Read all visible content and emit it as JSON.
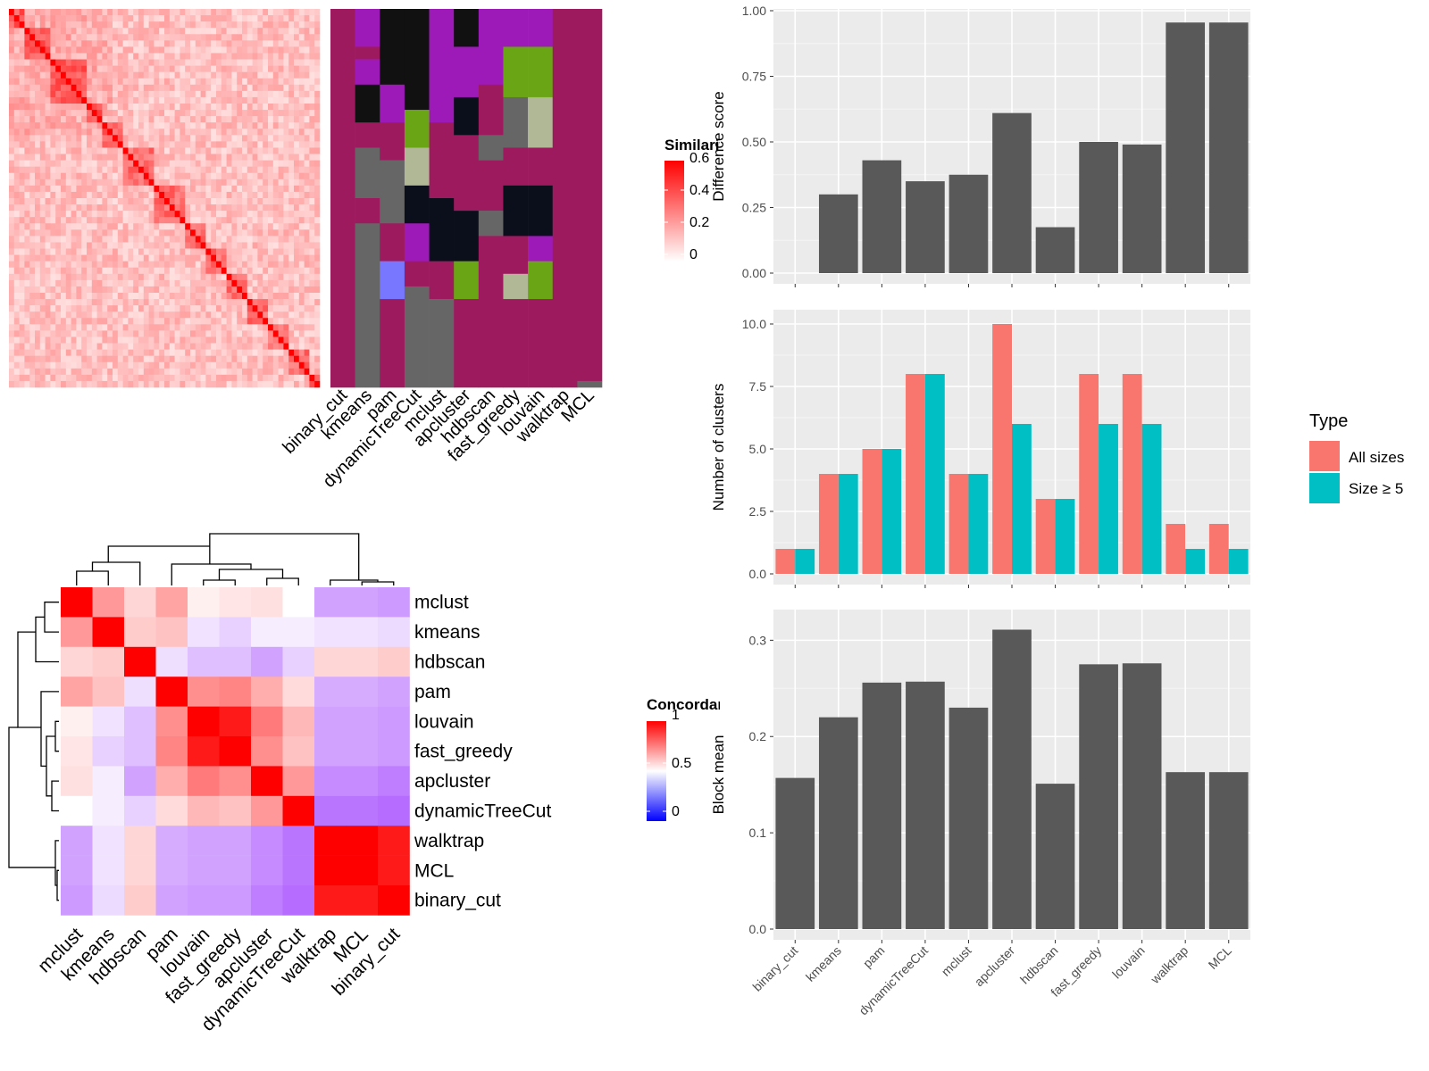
{
  "methods": [
    "binary_cut",
    "kmeans",
    "pam",
    "dynamicTreeCut",
    "mclust",
    "apcluster",
    "hdbscan",
    "fast_greedy",
    "louvain",
    "walktrap",
    "MCL"
  ],
  "similarity_legend": {
    "title": "Similarity",
    "ticks": [
      "0.6",
      "0.4",
      "0.2",
      "0"
    ]
  },
  "concordance_legend": {
    "title": "Concordance",
    "ticks": [
      "1",
      "0.5",
      "0"
    ]
  },
  "type_legend": {
    "title": "Type",
    "entries": [
      "All sizes",
      "Size ≥ 5"
    ]
  },
  "colors": {
    "panel_bg": "#ebebeb",
    "bar_grey": "#595959",
    "all_sizes": "#f8766d",
    "size5": "#00bfc4",
    "heat_red": "#ff0000"
  },
  "concordance_heatmap": {
    "rows": [
      "mclust",
      "kmeans",
      "hdbscan",
      "pam",
      "louvain",
      "fast_greedy",
      "apcluster",
      "dynamicTreeCut",
      "walktrap",
      "MCL",
      "binary_cut"
    ],
    "cols": [
      "mclust",
      "kmeans",
      "hdbscan",
      "pam",
      "louvain",
      "fast_greedy",
      "apcluster",
      "dynamicTreeCut",
      "walktrap",
      "MCL",
      "binary_cut"
    ],
    "values": [
      [
        1.0,
        0.7,
        0.58,
        0.68,
        0.53,
        0.55,
        0.56,
        0.5,
        0.3,
        0.3,
        0.28
      ],
      [
        0.7,
        1.0,
        0.6,
        0.62,
        0.44,
        0.4,
        0.46,
        0.46,
        0.44,
        0.44,
        0.42
      ],
      [
        0.58,
        0.6,
        1.0,
        0.43,
        0.36,
        0.36,
        0.3,
        0.4,
        0.58,
        0.58,
        0.6
      ],
      [
        0.68,
        0.62,
        0.43,
        1.0,
        0.72,
        0.74,
        0.66,
        0.57,
        0.32,
        0.32,
        0.3
      ],
      [
        0.53,
        0.44,
        0.36,
        0.72,
        1.0,
        0.95,
        0.76,
        0.64,
        0.3,
        0.3,
        0.28
      ],
      [
        0.55,
        0.4,
        0.36,
        0.74,
        0.95,
        1.0,
        0.72,
        0.62,
        0.3,
        0.3,
        0.28
      ],
      [
        0.56,
        0.46,
        0.3,
        0.66,
        0.76,
        0.72,
        1.0,
        0.7,
        0.25,
        0.25,
        0.22
      ],
      [
        0.5,
        0.46,
        0.4,
        0.57,
        0.64,
        0.62,
        0.7,
        1.0,
        0.2,
        0.2,
        0.18
      ],
      [
        0.3,
        0.44,
        0.58,
        0.32,
        0.3,
        0.3,
        0.25,
        0.2,
        1.0,
        1.0,
        0.95
      ],
      [
        0.3,
        0.44,
        0.58,
        0.32,
        0.3,
        0.3,
        0.25,
        0.2,
        1.0,
        1.0,
        0.95
      ],
      [
        0.28,
        0.42,
        0.6,
        0.3,
        0.28,
        0.28,
        0.22,
        0.18,
        0.95,
        0.95,
        1.0
      ]
    ]
  },
  "chart_data": [
    {
      "type": "bar",
      "categories": [
        "binary_cut",
        "kmeans",
        "pam",
        "dynamicTreeCut",
        "mclust",
        "apcluster",
        "hdbscan",
        "fast_greedy",
        "louvain",
        "walktrap",
        "MCL"
      ],
      "values": [
        0.0,
        0.3,
        0.43,
        0.35,
        0.375,
        0.61,
        0.175,
        0.5,
        0.49,
        0.955,
        0.955
      ],
      "ylabel": "Difference score",
      "ylim": [
        0,
        1.0
      ],
      "yticks": [
        "0.00",
        "0.25",
        "0.50",
        "0.75",
        "1.00"
      ],
      "ytick_values": [
        0,
        0.25,
        0.5,
        0.75,
        1.0
      ]
    },
    {
      "type": "bar",
      "categories": [
        "binary_cut",
        "kmeans",
        "pam",
        "dynamicTreeCut",
        "mclust",
        "apcluster",
        "hdbscan",
        "fast_greedy",
        "louvain",
        "walktrap",
        "MCL"
      ],
      "series": [
        {
          "name": "All sizes",
          "values": [
            1,
            4,
            5,
            8,
            4,
            10,
            3,
            8,
            8,
            2,
            2
          ]
        },
        {
          "name": "Size ≥ 5",
          "values": [
            1,
            4,
            5,
            8,
            4,
            6,
            3,
            6,
            6,
            1,
            1
          ]
        }
      ],
      "ylabel": "Number of clusters",
      "ylim": [
        0,
        10.5
      ],
      "yticks": [
        "0.0",
        "2.5",
        "5.0",
        "7.5",
        "10.0"
      ],
      "ytick_values": [
        0,
        2.5,
        5,
        7.5,
        10
      ]
    },
    {
      "type": "bar",
      "categories": [
        "binary_cut",
        "kmeans",
        "pam",
        "dynamicTreeCut",
        "mclust",
        "apcluster",
        "hdbscan",
        "fast_greedy",
        "louvain",
        "walktrap",
        "MCL"
      ],
      "values": [
        0.157,
        0.22,
        0.256,
        0.257,
        0.23,
        0.311,
        0.151,
        0.275,
        0.276,
        0.163,
        0.163
      ],
      "ylabel": "Block mean",
      "ylim": [
        0,
        0.33
      ],
      "yticks": [
        "0.0",
        "0.1",
        "0.2",
        "0.3"
      ],
      "ytick_values": [
        0,
        0.1,
        0.2,
        0.3
      ]
    }
  ]
}
